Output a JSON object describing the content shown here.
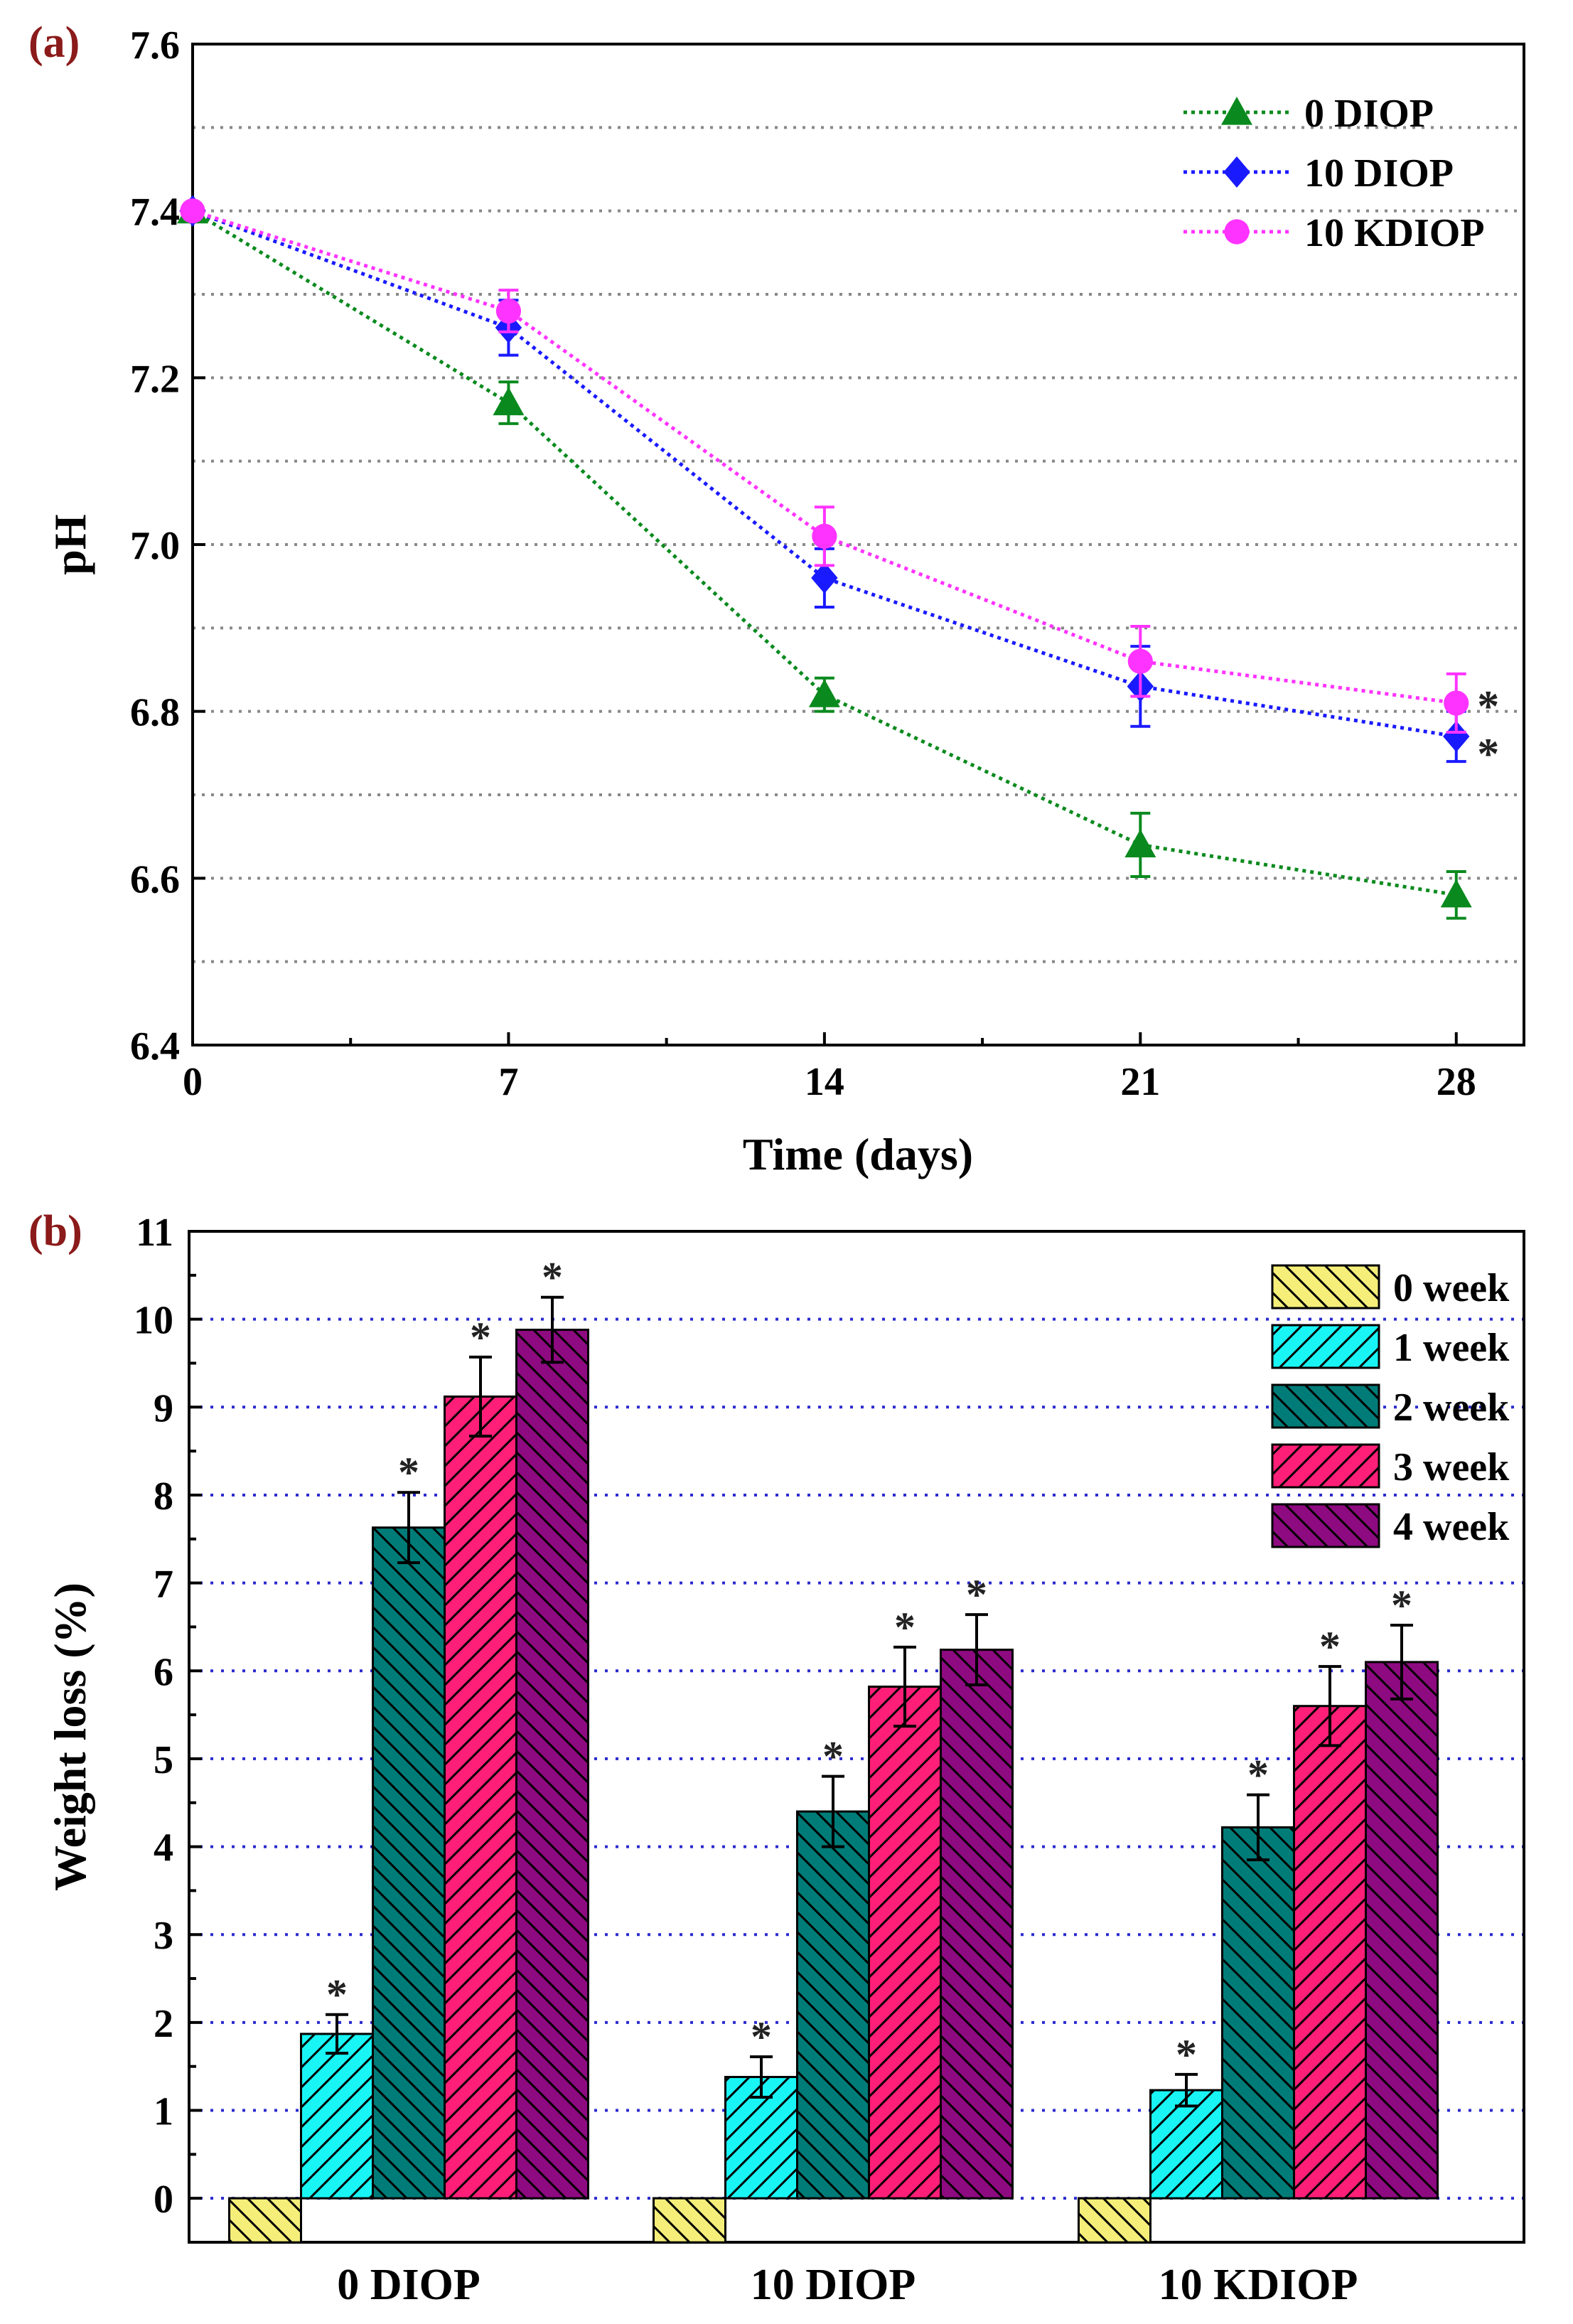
{
  "chart_data": [
    {
      "panel_label": "(a)",
      "type": "line",
      "xlabel": "Time (days)",
      "ylabel": "pH",
      "x": [
        0,
        7,
        14,
        21,
        28
      ],
      "xticks": [
        "0",
        "7",
        "14",
        "21",
        "28"
      ],
      "xlim": [
        0,
        29.5
      ],
      "ylim": [
        6.4,
        7.6
      ],
      "yticks": [
        "6.4",
        "6.6",
        "6.8",
        "7.0",
        "7.2",
        "7.4",
        "7.6"
      ],
      "grid": "horizontal dotted every 0.1",
      "legend_position": "top-right",
      "series": [
        {
          "name": "0 DIOP",
          "marker": "triangle",
          "color": "#0a8a1e",
          "values": [
            7.4,
            7.17,
            6.82,
            6.64,
            6.58
          ],
          "errors": [
            0,
            0.025,
            0.02,
            0.038,
            0.028
          ],
          "significance": [
            "",
            "",
            "",
            "",
            ""
          ]
        },
        {
          "name": "10 DIOP",
          "marker": "diamond",
          "color": "#1a1aff",
          "values": [
            7.4,
            7.26,
            6.96,
            6.83,
            6.77
          ],
          "errors": [
            0,
            0.033,
            0.035,
            0.048,
            0.03
          ],
          "significance": [
            "",
            "",
            "",
            "",
            "*"
          ]
        },
        {
          "name": "10 KDIOP",
          "marker": "circle",
          "color": "#ff33ff",
          "values": [
            7.4,
            7.28,
            7.01,
            6.86,
            6.81
          ],
          "errors": [
            0,
            0.025,
            0.035,
            0.042,
            0.035
          ],
          "significance": [
            "",
            "",
            "",
            "",
            "*"
          ]
        }
      ]
    },
    {
      "panel_label": "(b)",
      "type": "bar",
      "xlabel": "",
      "ylabel": "Weight loss (%)",
      "categories": [
        "0 DIOP",
        "10 DIOP",
        "10 KDIOP"
      ],
      "ylim": [
        -0.5,
        11
      ],
      "yticks": [
        "0",
        "1",
        "2",
        "3",
        "4",
        "5",
        "6",
        "7",
        "8",
        "9",
        "10",
        "11"
      ],
      "grid": "horizontal dotted every 1",
      "legend_position": "top-right",
      "series": [
        {
          "name": "0 week",
          "color": "#f5ef7a",
          "hatch": "back",
          "values": [
            0,
            0,
            0
          ],
          "errors": [
            0,
            0,
            0
          ],
          "significance": [
            "",
            "",
            ""
          ]
        },
        {
          "name": "1 week",
          "color": "#19f5f5",
          "hatch": "fwd",
          "values": [
            1.87,
            1.38,
            1.23
          ],
          "errors": [
            0.22,
            0.23,
            0.18
          ],
          "significance": [
            "*",
            "*",
            "*"
          ]
        },
        {
          "name": "2 week",
          "color": "#007c78",
          "hatch": "back",
          "values": [
            7.63,
            4.4,
            4.22
          ],
          "errors": [
            0.4,
            0.4,
            0.37
          ],
          "significance": [
            "*",
            "*",
            "*"
          ]
        },
        {
          "name": "3 week",
          "color": "#ff1f78",
          "hatch": "fwd",
          "values": [
            9.12,
            5.82,
            5.6
          ],
          "errors": [
            0.45,
            0.45,
            0.45
          ],
          "significance": [
            "*",
            "*",
            "*"
          ]
        },
        {
          "name": "4 week",
          "color": "#8e0a80",
          "hatch": "back",
          "values": [
            9.88,
            6.24,
            6.1
          ],
          "errors": [
            0.37,
            0.4,
            0.42
          ],
          "significance": [
            "*",
            "*",
            "*"
          ]
        }
      ]
    }
  ]
}
